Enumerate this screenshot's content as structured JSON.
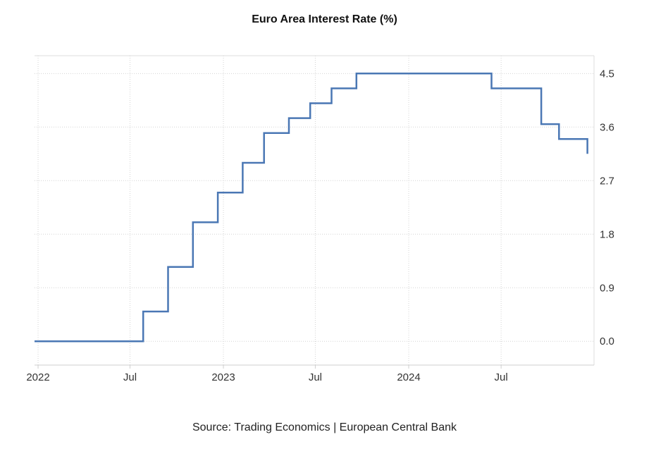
{
  "chart_data": {
    "type": "line",
    "step": true,
    "title": "Euro Area Interest Rate (%)",
    "source": "Source: Trading Economics | European Central Bank",
    "xlabel": "",
    "ylabel": "",
    "x_ticks": [
      {
        "date": "2022-01-01",
        "label": "2022"
      },
      {
        "date": "2022-07-01",
        "label": "Jul"
      },
      {
        "date": "2023-01-01",
        "label": "2023"
      },
      {
        "date": "2023-07-01",
        "label": "Jul"
      },
      {
        "date": "2024-01-01",
        "label": "2024"
      },
      {
        "date": "2024-07-01",
        "label": "Jul"
      }
    ],
    "y_ticks": [
      "0.0",
      "0.9",
      "1.8",
      "2.7",
      "3.6",
      "4.5"
    ],
    "xlim": [
      "2021-12-25",
      "2024-12-31"
    ],
    "ylim": [
      -0.4,
      4.8
    ],
    "y_axis_position": "right",
    "grid": true,
    "legend": "none",
    "line_color": "#4a77b4",
    "series": [
      {
        "points": [
          {
            "date": "2021-12-25",
            "value": 0.0
          },
          {
            "date": "2022-07-27",
            "value": 0.5
          },
          {
            "date": "2022-09-14",
            "value": 1.25
          },
          {
            "date": "2022-11-02",
            "value": 2.0
          },
          {
            "date": "2022-12-21",
            "value": 2.5
          },
          {
            "date": "2023-02-08",
            "value": 3.0
          },
          {
            "date": "2023-03-22",
            "value": 3.5
          },
          {
            "date": "2023-05-10",
            "value": 3.75
          },
          {
            "date": "2023-06-21",
            "value": 4.0
          },
          {
            "date": "2023-08-02",
            "value": 4.25
          },
          {
            "date": "2023-09-20",
            "value": 4.5
          },
          {
            "date": "2024-06-12",
            "value": 4.25
          },
          {
            "date": "2024-09-18",
            "value": 3.65
          },
          {
            "date": "2024-10-23",
            "value": 3.4
          },
          {
            "date": "2024-12-18",
            "value": 3.15
          }
        ]
      }
    ]
  }
}
